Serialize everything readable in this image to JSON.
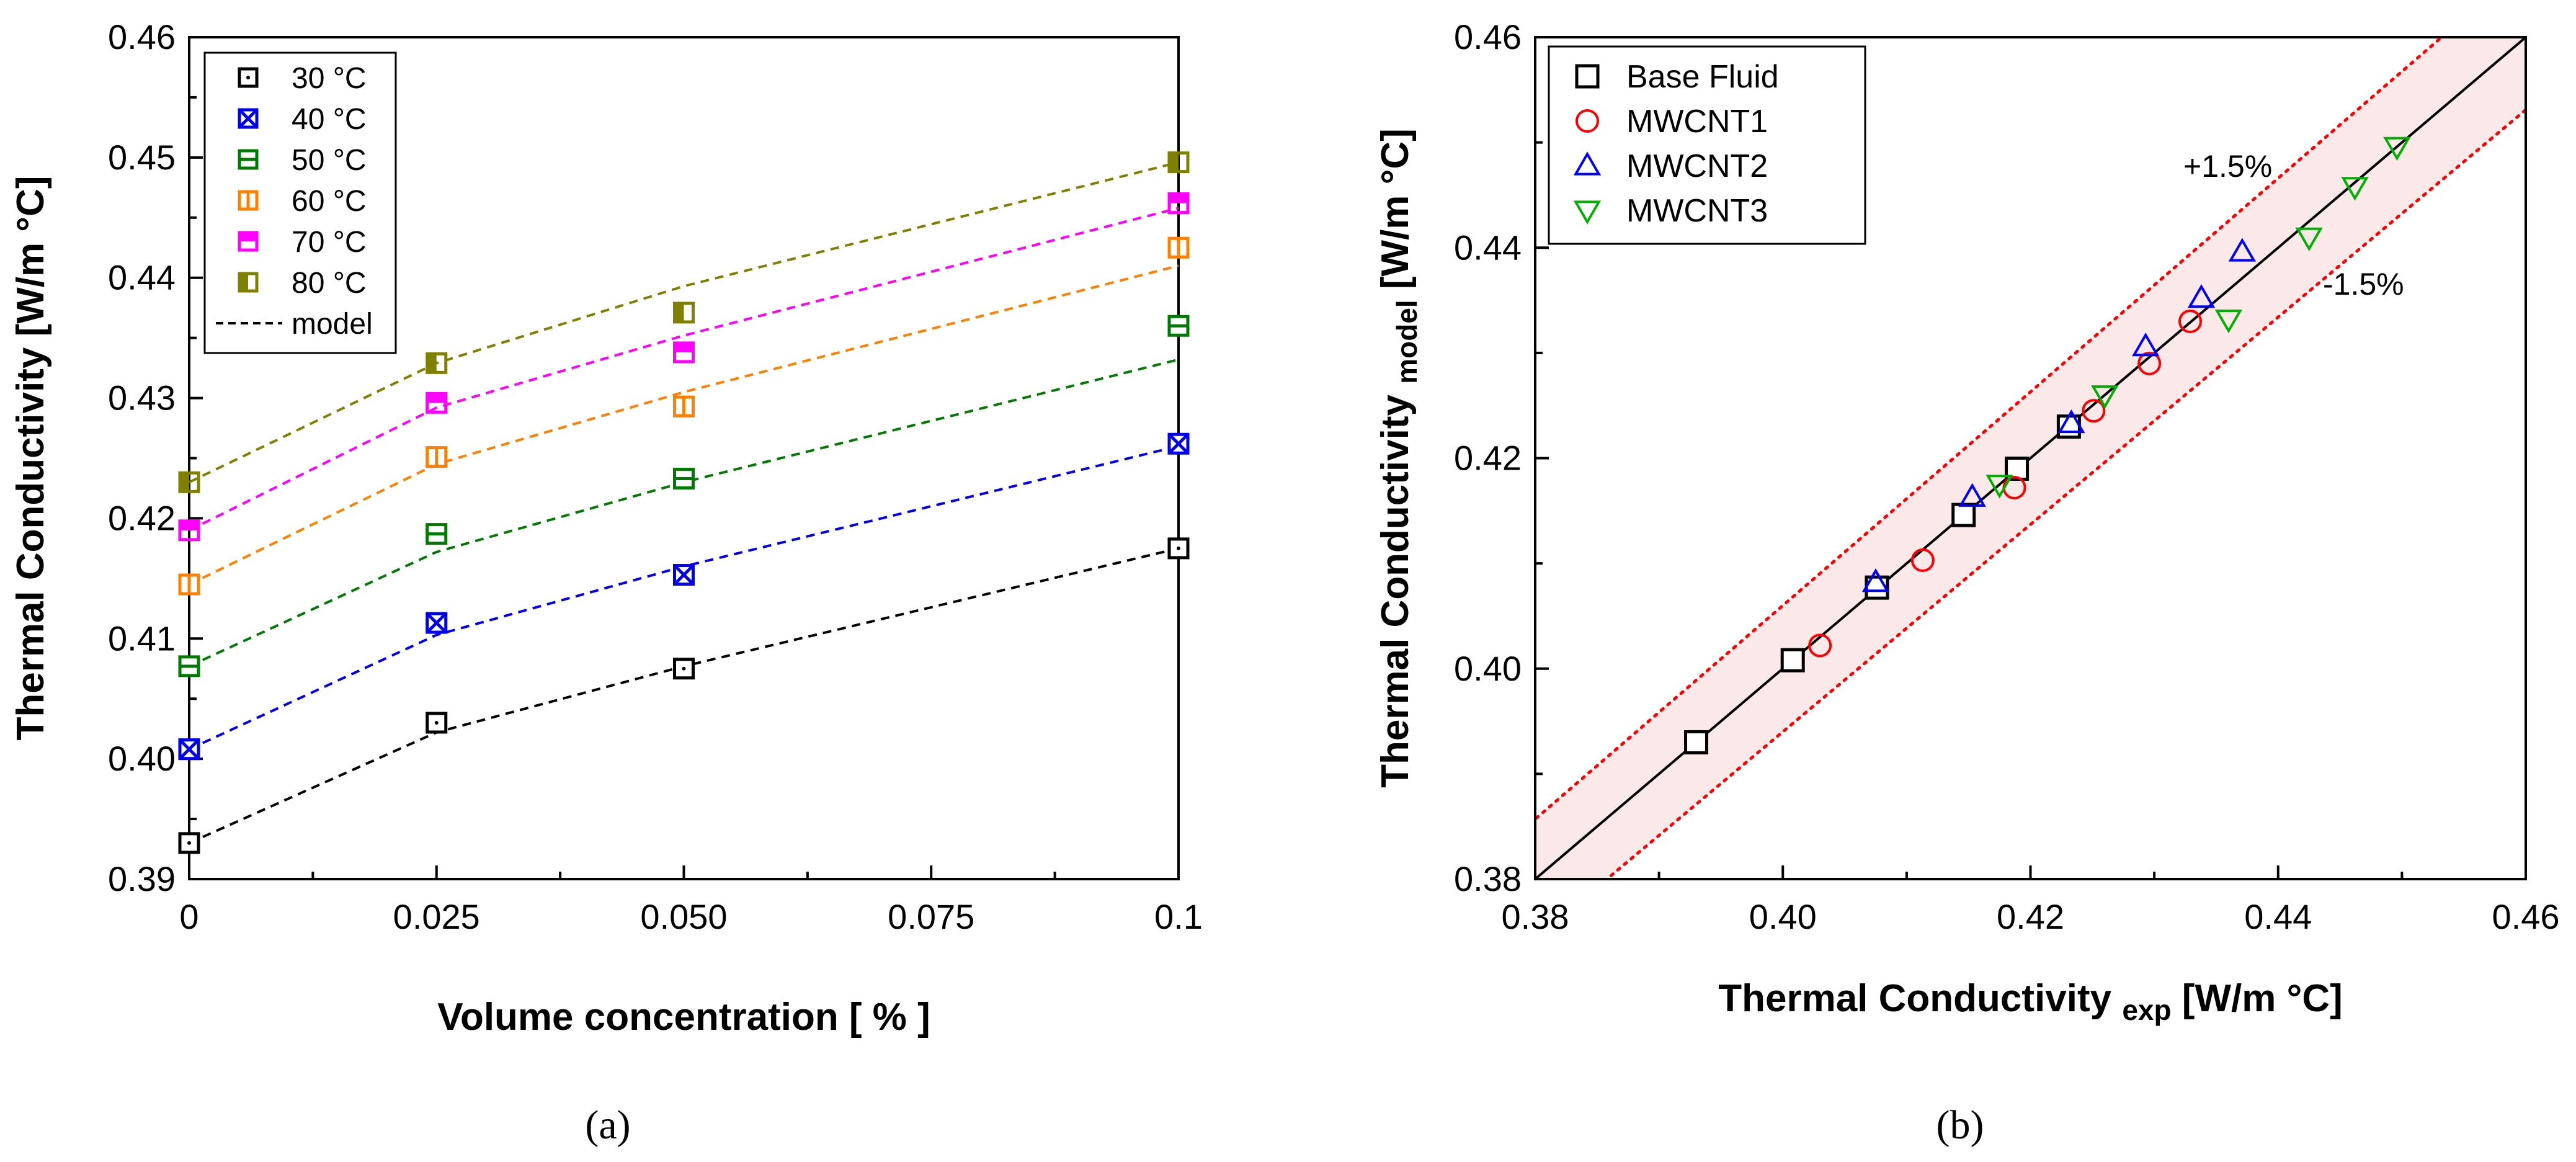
{
  "panels": {
    "a": "(a)",
    "b": "(b)"
  },
  "chart_data": [
    {
      "type": "line",
      "panel": "(a)",
      "title": "",
      "xlabel": "Volume concentration [ % ]",
      "ylabel": "Thermal Conductivity [W/m °C]",
      "xlim": [
        0,
        0.1
      ],
      "ylim": [
        0.39,
        0.46
      ],
      "x_tick_labels": [
        "0",
        "0.025",
        "0.050",
        "0.075",
        "0.1"
      ],
      "y_tick_labels": [
        "0.39",
        "0.40",
        "0.41",
        "0.42",
        "0.43",
        "0.44",
        "0.45",
        "0.46"
      ],
      "x": [
        0,
        0.025,
        0.05,
        0.1
      ],
      "legend_position": "top-left",
      "series": [
        {
          "name": "30 °C",
          "color": "#000000",
          "marker": "square-dot",
          "values": [
            0.393,
            0.403,
            0.4075,
            0.4175
          ],
          "model": [
            0.393,
            0.4022,
            0.4077,
            0.4175
          ]
        },
        {
          "name": "40 °C",
          "color": "#0000ee",
          "marker": "square-x",
          "values": [
            0.4008,
            0.4113,
            0.4153,
            0.4262
          ],
          "model": [
            0.4008,
            0.4103,
            0.416,
            0.426
          ]
        },
        {
          "name": "50 °C",
          "color": "#007a00",
          "marker": "square-hbar",
          "values": [
            0.4077,
            0.4187,
            0.4233,
            0.436
          ],
          "model": [
            0.4077,
            0.4172,
            0.423,
            0.4332
          ]
        },
        {
          "name": "60 °C",
          "color": "#ff8000",
          "marker": "square-vbar",
          "values": [
            0.4145,
            0.4251,
            0.4293,
            0.4425
          ],
          "model": [
            0.4145,
            0.4245,
            0.4305,
            0.441
          ]
        },
        {
          "name": "70 °C",
          "color": "#ff00ff",
          "marker": "square-tophalf",
          "values": [
            0.419,
            0.4296,
            0.4338,
            0.4462
          ],
          "model": [
            0.419,
            0.4292,
            0.4352,
            0.4458
          ]
        },
        {
          "name": "80 °C",
          "color": "#808000",
          "marker": "square-lefthalf",
          "values": [
            0.423,
            0.4329,
            0.4371,
            0.4496
          ],
          "model": [
            0.423,
            0.4329,
            0.4393,
            0.4496
          ]
        }
      ],
      "model_label": "model"
    },
    {
      "type": "scatter",
      "panel": "(b)",
      "title": "",
      "xlabel": "Thermal Conductivity",
      "xlabel_sub": "exp",
      "xlabel_unit": "[W/m °C]",
      "ylabel": "Thermal Conductivity",
      "ylabel_sub": "model",
      "ylabel_unit": "[W/m °C]",
      "xlim": [
        0.38,
        0.46
      ],
      "ylim": [
        0.38,
        0.46
      ],
      "x_tick_labels": [
        "0.38",
        "0.40",
        "0.42",
        "0.44",
        "0.46"
      ],
      "y_tick_labels": [
        "0.38",
        "0.40",
        "0.42",
        "0.44",
        "0.46"
      ],
      "legend_position": "top-left",
      "band_percent": 1.5,
      "annotations": {
        "upper": "+1.5%",
        "lower": "-1.5%"
      },
      "series": [
        {
          "name": "Base Fluid",
          "color": "#000000",
          "marker": "square",
          "points": [
            [
              0.393,
              0.393
            ],
            [
              0.4008,
              0.4008
            ],
            [
              0.4076,
              0.4077
            ],
            [
              0.4146,
              0.4146
            ],
            [
              0.4189,
              0.419
            ],
            [
              0.4231,
              0.423
            ]
          ]
        },
        {
          "name": "MWCNT1",
          "color": "#ff0000",
          "marker": "circle",
          "points": [
            [
              0.403,
              0.4022
            ],
            [
              0.4113,
              0.4103
            ],
            [
              0.4187,
              0.4172
            ],
            [
              0.4251,
              0.4245
            ],
            [
              0.4296,
              0.429
            ],
            [
              0.4329,
              0.433
            ]
          ]
        },
        {
          "name": "MWCNT2",
          "color": "#0000ff",
          "marker": "triangle-up",
          "points": [
            [
              0.4075,
              0.4082
            ],
            [
              0.4153,
              0.4163
            ],
            [
              0.4233,
              0.4233
            ],
            [
              0.4293,
              0.4306
            ],
            [
              0.4338,
              0.4352
            ],
            [
              0.4371,
              0.4396
            ]
          ]
        },
        {
          "name": "MWCNT3",
          "color": "#00b000",
          "marker": "triangle-down",
          "points": [
            [
              0.4175,
              0.4175
            ],
            [
              0.426,
              0.426
            ],
            [
              0.436,
              0.4332
            ],
            [
              0.4425,
              0.441
            ],
            [
              0.4462,
              0.4458
            ],
            [
              0.4496,
              0.4496
            ]
          ]
        }
      ]
    }
  ]
}
